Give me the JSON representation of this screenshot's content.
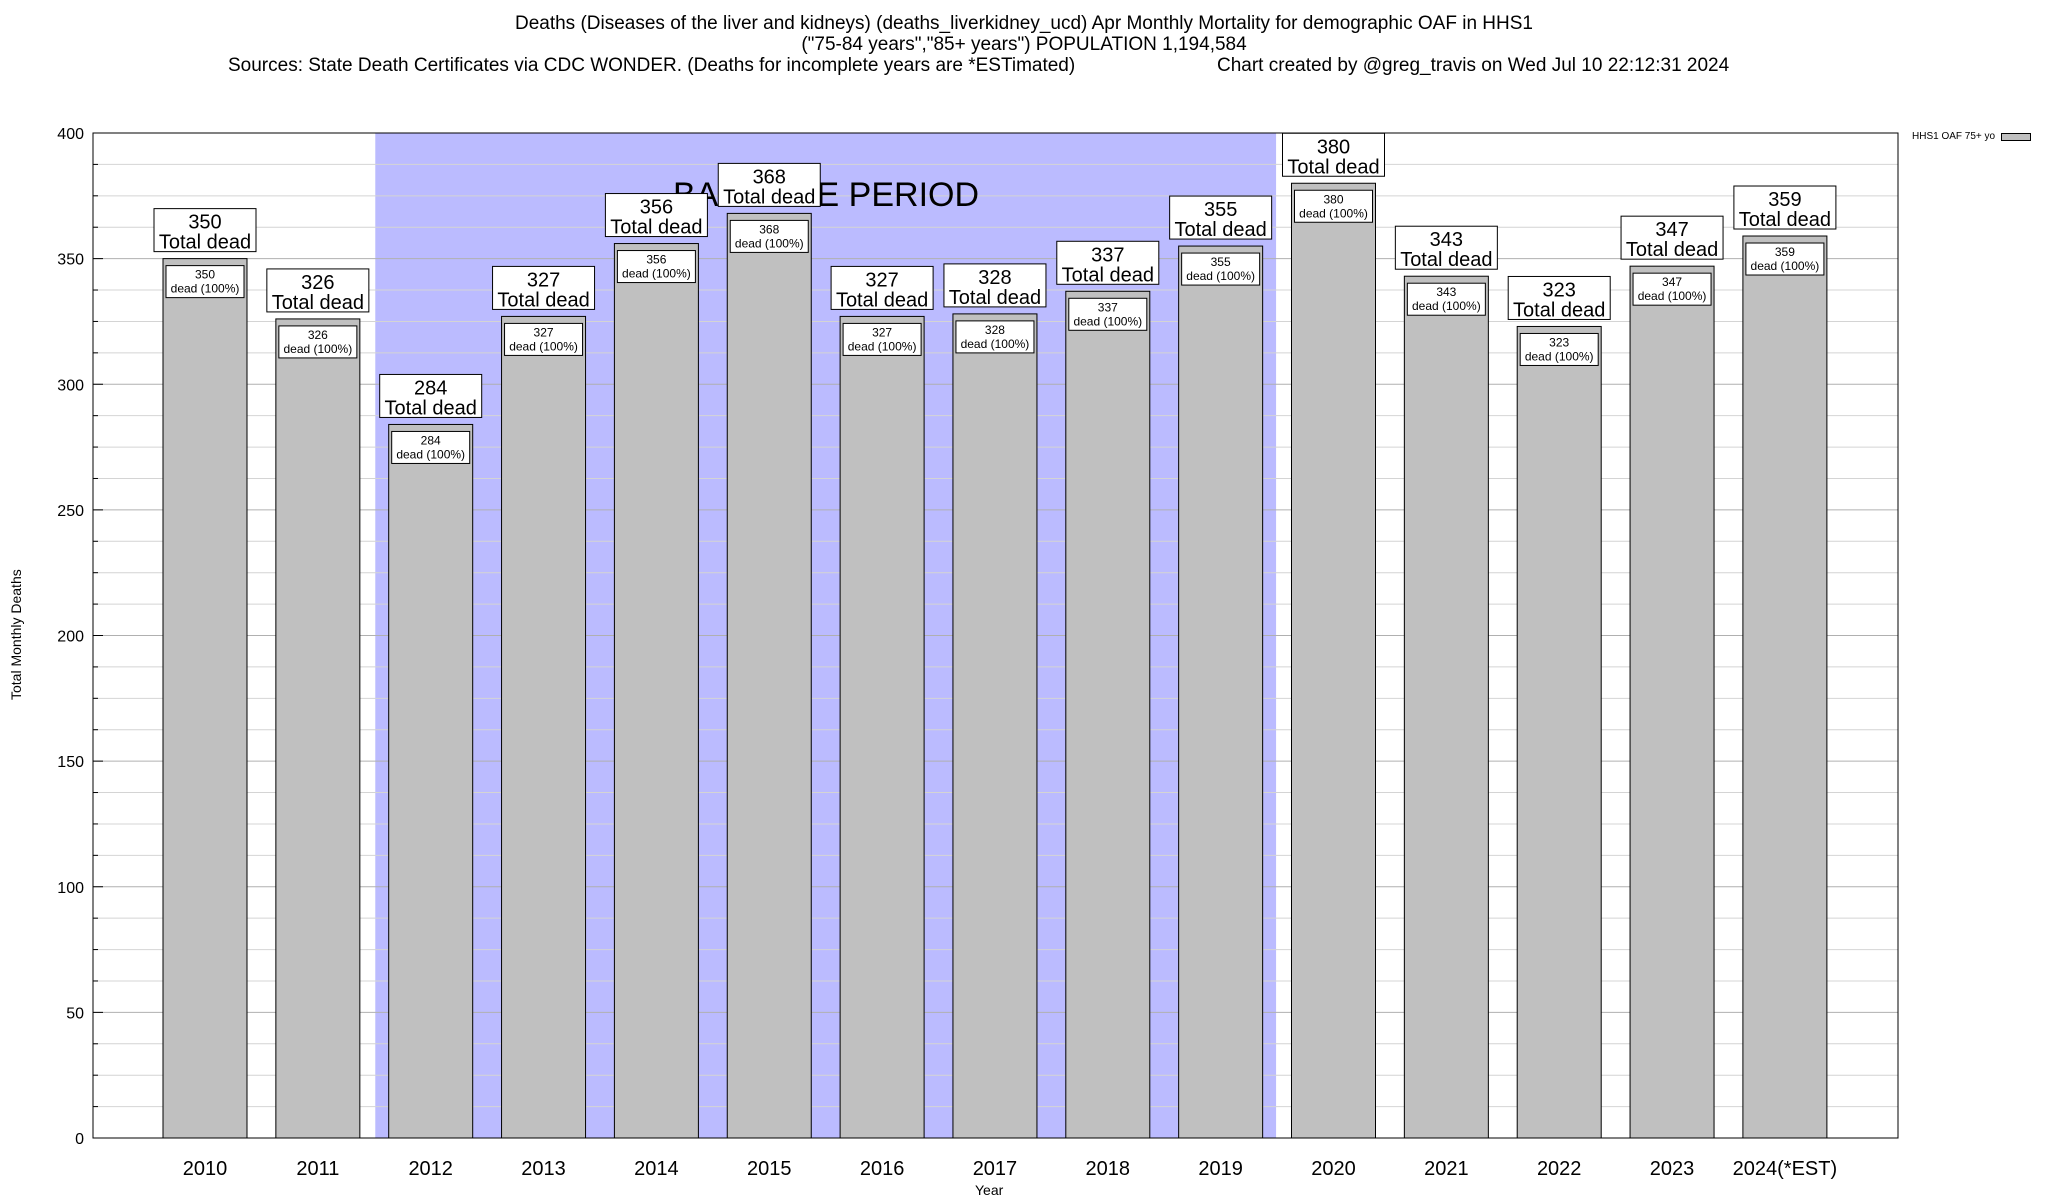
{
  "header": {
    "title_line1": "Deaths (Diseases of the liver and kidneys) (deaths_liverkidney_ucd) Apr Monthly Mortality for demographic OAF in HHS1",
    "title_line2": "(\"75-84 years\",\"85+ years\") POPULATION 1,194,584",
    "sources": "Sources: State Death Certificates via CDC WONDER. (Deaths for incomplete years are *ESTimated)",
    "credit": "Chart created by @greg_travis on Wed Jul 10 22:12:31 2024"
  },
  "chart_data": {
    "type": "bar",
    "xlabel": "Year",
    "ylabel": "Total Monthly Deaths",
    "ylim": [
      0,
      400
    ],
    "yticks": [
      0,
      50,
      100,
      150,
      200,
      250,
      300,
      350,
      400
    ],
    "categories": [
      "2010",
      "2011",
      "2012",
      "2013",
      "2014",
      "2015",
      "2016",
      "2017",
      "2018",
      "2019",
      "2020",
      "2021",
      "2022",
      "2023",
      "2024(*EST)"
    ],
    "series": [
      {
        "name": "HHS1 OAF 75+ yo",
        "values": [
          350,
          326,
          284,
          327,
          356,
          368,
          327,
          328,
          337,
          355,
          380,
          343,
          323,
          347,
          359
        ],
        "color": "#c0c0c0"
      }
    ],
    "total_label": "Total dead",
    "inner_label": "dead (100%)",
    "baseline": {
      "label": "BASELINE PERIOD",
      "from": "2012",
      "to": "2019",
      "color": "#bbbbff"
    },
    "grid": true,
    "legend_position": "top-right"
  }
}
